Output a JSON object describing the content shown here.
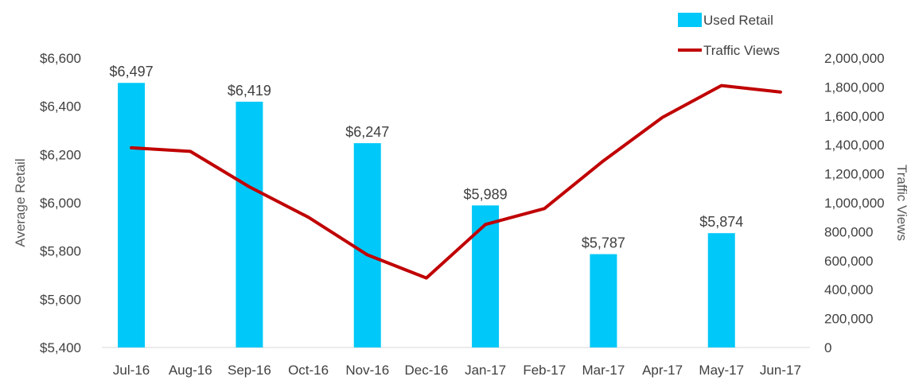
{
  "chart_data": {
    "type": "bar+line",
    "categories": [
      "Jul-16",
      "Aug-16",
      "Sep-16",
      "Oct-16",
      "Nov-16",
      "Dec-16",
      "Jan-17",
      "Feb-17",
      "Mar-17",
      "Apr-17",
      "May-17",
      "Jun-17"
    ],
    "series": [
      {
        "name": "Used Retail",
        "type": "bar",
        "axis": "left",
        "color": "#00C8F8",
        "values": [
          6497,
          null,
          6419,
          null,
          6247,
          null,
          5989,
          null,
          5787,
          null,
          5874,
          null
        ],
        "data_labels": [
          "$6,497",
          "",
          "$6,419",
          "",
          "$6,247",
          "",
          "$5,989",
          "",
          "$5,787",
          "",
          "$5,874",
          ""
        ]
      },
      {
        "name": "Traffic Views",
        "type": "line",
        "axis": "right",
        "color": "#C00000",
        "values": [
          1380000,
          1355000,
          1110000,
          900000,
          640000,
          480000,
          850000,
          960000,
          1290000,
          1590000,
          1810000,
          1765000
        ]
      }
    ],
    "left_axis": {
      "label": "Average Retail",
      "min": 5400,
      "max": 6600,
      "ticks": [
        5400,
        5600,
        5800,
        6000,
        6200,
        6400,
        6600
      ],
      "tick_labels": [
        "$5,400",
        "$5,600",
        "$5,800",
        "$6,000",
        "$6,200",
        "$6,400",
        "$6,600"
      ]
    },
    "right_axis": {
      "label": "Traffic Views",
      "min": 0,
      "max": 2000000,
      "ticks": [
        0,
        200000,
        400000,
        600000,
        800000,
        1000000,
        1200000,
        1400000,
        1600000,
        1800000,
        2000000
      ],
      "tick_labels": [
        "0",
        "200,000",
        "400,000",
        "600,000",
        "800,000",
        "1,000,000",
        "1,200,000",
        "1,400,000",
        "1,600,000",
        "1,800,000",
        "2,000,000"
      ]
    },
    "legend": {
      "position": "top-right",
      "entries": [
        "Used Retail",
        "Traffic Views"
      ]
    },
    "grid": false
  }
}
